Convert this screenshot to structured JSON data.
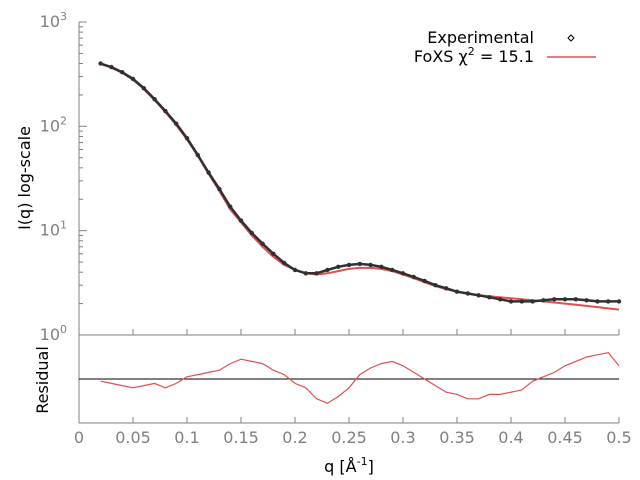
{
  "chart_data": [
    {
      "type": "scatter",
      "title": "",
      "xlabel": "",
      "ylabel": "I(q) log-scale",
      "xlim": [
        0,
        0.5
      ],
      "ylim": [
        1,
        1000
      ],
      "y_scale": "log",
      "y_ticks": [
        {
          "value": 1,
          "mantissa": "10",
          "exponent": "0"
        },
        {
          "value": 10,
          "mantissa": "10",
          "exponent": "1"
        },
        {
          "value": 100,
          "mantissa": "10",
          "exponent": "2"
        },
        {
          "value": 1000,
          "mantissa": "10",
          "exponent": "3"
        }
      ],
      "legend_position": "top-right",
      "series": [
        {
          "name": "Experimental",
          "kind": "points",
          "color": "#303030",
          "x": [
            0.02,
            0.03,
            0.04,
            0.05,
            0.06,
            0.07,
            0.08,
            0.09,
            0.1,
            0.11,
            0.12,
            0.13,
            0.14,
            0.15,
            0.16,
            0.17,
            0.18,
            0.19,
            0.2,
            0.21,
            0.22,
            0.23,
            0.24,
            0.25,
            0.26,
            0.27,
            0.28,
            0.29,
            0.3,
            0.31,
            0.32,
            0.33,
            0.34,
            0.35,
            0.36,
            0.37,
            0.38,
            0.39,
            0.4,
            0.41,
            0.42,
            0.43,
            0.44,
            0.45,
            0.46,
            0.47,
            0.48,
            0.49,
            0.5
          ],
          "y": [
            400,
            370,
            330,
            285,
            232,
            182,
            140,
            106,
            77,
            53,
            36,
            25,
            17,
            12.5,
            9.5,
            7.5,
            6.0,
            4.9,
            4.2,
            3.9,
            3.9,
            4.2,
            4.5,
            4.7,
            4.8,
            4.7,
            4.5,
            4.2,
            3.9,
            3.6,
            3.3,
            3.0,
            2.8,
            2.6,
            2.5,
            2.4,
            2.3,
            2.2,
            2.1,
            2.1,
            2.1,
            2.15,
            2.2,
            2.2,
            2.2,
            2.15,
            2.1,
            2.1,
            2.1
          ]
        },
        {
          "name": "FoXS χ² = 15.1",
          "name_prefix": "FoXS χ",
          "name_exponent": "2",
          "name_suffix": " = 15.1",
          "kind": "line",
          "color": "#e05050",
          "x": [
            0.02,
            0.03,
            0.04,
            0.05,
            0.06,
            0.07,
            0.08,
            0.09,
            0.1,
            0.11,
            0.12,
            0.13,
            0.14,
            0.15,
            0.16,
            0.17,
            0.18,
            0.19,
            0.2,
            0.21,
            0.22,
            0.23,
            0.24,
            0.25,
            0.26,
            0.27,
            0.28,
            0.29,
            0.3,
            0.31,
            0.32,
            0.33,
            0.34,
            0.35,
            0.36,
            0.37,
            0.38,
            0.39,
            0.4,
            0.41,
            0.42,
            0.43,
            0.44,
            0.45,
            0.46,
            0.47,
            0.48,
            0.49,
            0.5
          ],
          "y": [
            395,
            365,
            325,
            280,
            228,
            178,
            137,
            103,
            75,
            52,
            35,
            24,
            16,
            12,
            9.0,
            7.0,
            5.6,
            4.7,
            4.2,
            3.9,
            3.8,
            3.9,
            4.1,
            4.3,
            4.4,
            4.4,
            4.3,
            4.1,
            3.8,
            3.5,
            3.2,
            2.95,
            2.75,
            2.6,
            2.5,
            2.4,
            2.35,
            2.3,
            2.25,
            2.2,
            2.15,
            2.1,
            2.05,
            2.0,
            1.95,
            1.9,
            1.85,
            1.8,
            1.75
          ]
        }
      ]
    },
    {
      "type": "line",
      "title": "",
      "xlabel": "q [Å",
      "xlabel_exponent": "-1",
      "xlabel_suffix": "]",
      "ylabel": "Residual",
      "xlim": [
        0,
        0.5
      ],
      "ylim": [
        -1,
        1
      ],
      "x_ticks": [
        "0",
        "0.05",
        "0.1",
        "0.15",
        "0.2",
        "0.25",
        "0.3",
        "0.35",
        "0.4",
        "0.45",
        "0.5"
      ],
      "x_tick_values": [
        0,
        0.05,
        0.1,
        0.15,
        0.2,
        0.25,
        0.3,
        0.35,
        0.4,
        0.45,
        0.5
      ],
      "reference_line": 0,
      "series": [
        {
          "kind": "line",
          "color": "#e05050",
          "x": [
            0.02,
            0.03,
            0.04,
            0.05,
            0.06,
            0.07,
            0.08,
            0.09,
            0.1,
            0.11,
            0.12,
            0.13,
            0.14,
            0.15,
            0.16,
            0.17,
            0.18,
            0.19,
            0.2,
            0.21,
            0.22,
            0.23,
            0.24,
            0.25,
            0.26,
            0.27,
            0.28,
            0.29,
            0.3,
            0.31,
            0.32,
            0.33,
            0.34,
            0.35,
            0.36,
            0.37,
            0.38,
            0.39,
            0.4,
            0.41,
            0.42,
            0.43,
            0.44,
            0.45,
            0.46,
            0.47,
            0.48,
            0.49,
            0.5
          ],
          "y": [
            -0.05,
            -0.1,
            -0.15,
            -0.2,
            -0.15,
            -0.1,
            -0.2,
            -0.1,
            0.05,
            0.1,
            0.15,
            0.2,
            0.35,
            0.45,
            0.4,
            0.35,
            0.2,
            0.1,
            -0.1,
            -0.2,
            -0.45,
            -0.55,
            -0.4,
            -0.2,
            0.1,
            0.25,
            0.35,
            0.4,
            0.3,
            0.15,
            0.0,
            -0.15,
            -0.3,
            -0.35,
            -0.45,
            -0.45,
            -0.35,
            -0.35,
            -0.3,
            -0.25,
            -0.05,
            0.05,
            0.15,
            0.3,
            0.4,
            0.5,
            0.55,
            0.6,
            0.3
          ]
        }
      ]
    }
  ]
}
